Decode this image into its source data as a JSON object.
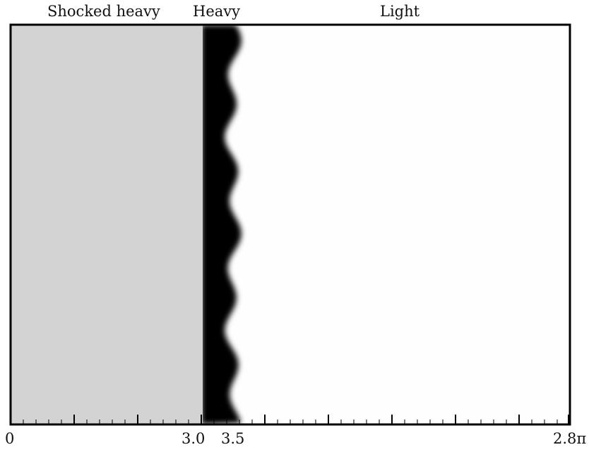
{
  "regions": {
    "shocked_heavy": "Shocked heavy",
    "heavy": "Heavy",
    "light": "Light"
  },
  "ticks": {
    "start": "0",
    "interface_left": "3.0",
    "interface_right": "3.5",
    "end": "2.8π"
  },
  "colors": {
    "shocked_heavy_fill": "#d3d3d3",
    "heavy_fill": "#000000",
    "light_fill": "#fefefe",
    "frame": "#000000"
  }
}
